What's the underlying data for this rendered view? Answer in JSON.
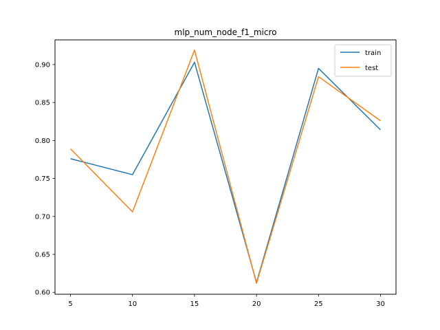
{
  "chart_data": {
    "type": "line",
    "title": "mlp_num_node_f1_micro",
    "xlabel": "",
    "ylabel": "",
    "x": [
      5,
      10,
      15,
      20,
      25,
      30
    ],
    "xticks": [
      5,
      10,
      15,
      20,
      25,
      30
    ],
    "yticks": [
      "0.60",
      "0.65",
      "0.70",
      "0.75",
      "0.80",
      "0.85",
      "0.90"
    ],
    "xlim": [
      3.75,
      31.25
    ],
    "ylim": [
      0.5975,
      0.9325
    ],
    "grid": false,
    "legend_placement": "upper-right",
    "series": [
      {
        "name": "train",
        "color": "#1f77b4",
        "values": [
          0.776,
          0.755,
          0.903,
          0.613,
          0.895,
          0.814
        ]
      },
      {
        "name": "test",
        "color": "#ff7f0e",
        "values": [
          0.789,
          0.706,
          0.919,
          0.612,
          0.884,
          0.826
        ]
      }
    ]
  }
}
